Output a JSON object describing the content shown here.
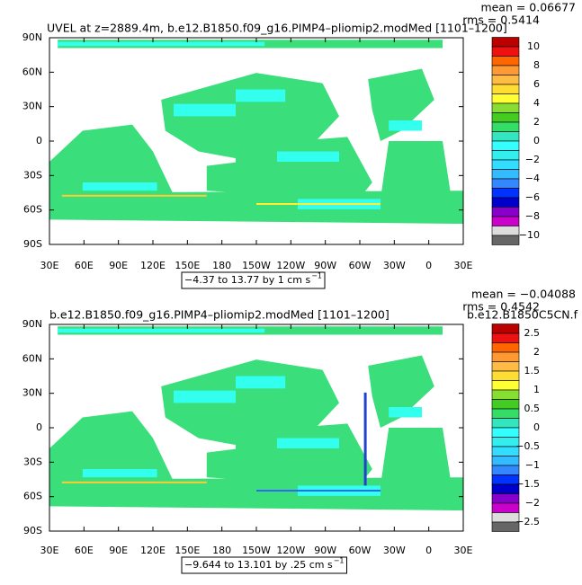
{
  "lat_labels": [
    "90N",
    "60N",
    "30N",
    "0",
    "30S",
    "60S",
    "90S"
  ],
  "lon_labels": [
    "30E",
    "60E",
    "90E",
    "120E",
    "150E",
    "180",
    "150W",
    "120W",
    "90W",
    "60W",
    "30W",
    "0",
    "30E"
  ],
  "panels": [
    {
      "title": "UVEL at z=2889.4m, b.e12.B1850.f09_g16.PIMP4–pliomip2.modMed [1101–1200]",
      "mean": "mean = 0.06677",
      "rms": "rms = 0.5414",
      "info": "−4.37 to 13.77 by 1 cm s",
      "info_exp": "−1",
      "colorbar_labels": [
        "10",
        "8",
        "6",
        "4",
        "2",
        "0",
        "−2",
        "−4",
        "−6",
        "−8",
        "−10"
      ]
    },
    {
      "title": "b.e12.B1850.f09_g16.PIMP4–pliomip2.modMed [1101–1200]",
      "right_title": "b.e12.B1850C5CN.f",
      "mean": "mean = −0.04088",
      "rms": "rms = 0.4542",
      "info": "−9.644 to 13.101 by .25 cm s",
      "info_exp": "−1",
      "colorbar_labels": [
        "2.5",
        "2",
        "1.5",
        "1",
        "0.5",
        "0",
        "−0.5",
        "−1",
        "−1.5",
        "−2",
        "−2.5"
      ]
    }
  ]
}
